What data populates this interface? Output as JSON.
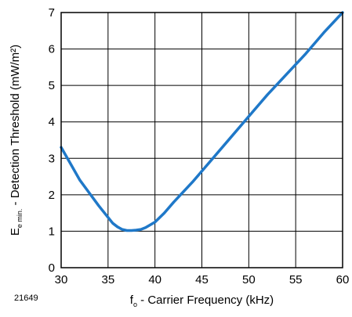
{
  "chart_data": {
    "type": "line",
    "figure_id": "21649",
    "xlabel": {
      "main": "f",
      "sub": "o",
      "rest": " - Carrier Frequency (kHz)"
    },
    "ylabel": {
      "main": "E",
      "sub": "e min.",
      "rest": " - Detection Threshold (mW/m²)"
    },
    "xlim": [
      30,
      60
    ],
    "ylim": [
      0,
      7
    ],
    "xticks": [
      "30",
      "35",
      "40",
      "45",
      "50",
      "55",
      "60"
    ],
    "yticks": [
      "0",
      "1",
      "2",
      "3",
      "4",
      "5",
      "6",
      "7"
    ],
    "grid": true,
    "line_color": "#1f78c8",
    "series": [
      {
        "x": [
          30,
          31,
          32,
          33,
          34,
          35,
          35.5,
          36,
          36.5,
          37,
          37.5,
          38,
          38.5,
          39,
          40,
          41,
          42,
          44,
          46,
          48,
          50,
          52,
          54,
          56,
          58,
          60
        ],
        "y": [
          3.3,
          2.85,
          2.4,
          2.05,
          1.7,
          1.38,
          1.22,
          1.12,
          1.05,
          1.02,
          1.02,
          1.03,
          1.05,
          1.1,
          1.25,
          1.5,
          1.8,
          2.35,
          2.95,
          3.55,
          4.15,
          4.75,
          5.3,
          5.85,
          6.45,
          7.0
        ]
      }
    ]
  }
}
